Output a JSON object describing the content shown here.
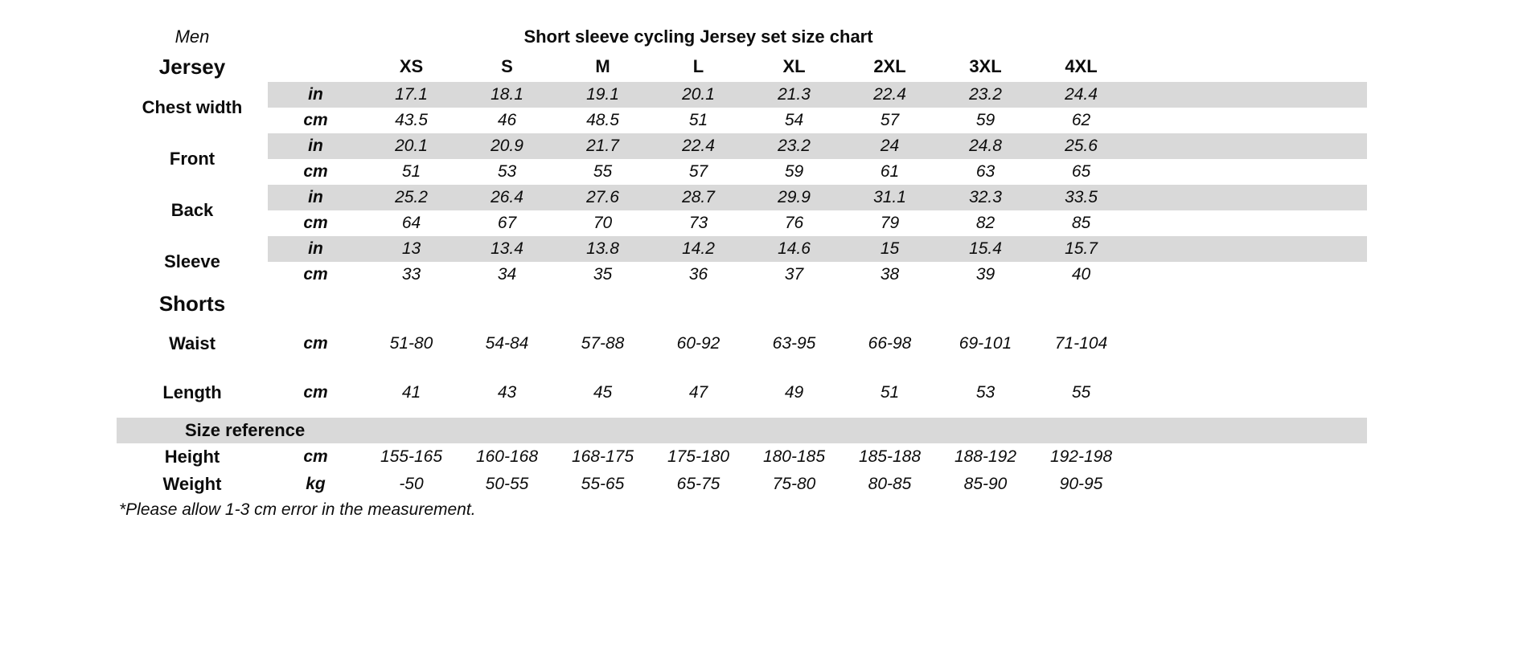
{
  "chart_data": {
    "type": "table",
    "gender": "Men",
    "title": "Short sleeve cycling Jersey set size chart",
    "columns": [
      "XS",
      "S",
      "M",
      "L",
      "XL",
      "2XL",
      "3XL",
      "4XL"
    ],
    "units": {
      "in": "in",
      "cm": "cm",
      "kg": "kg"
    },
    "jersey": {
      "heading": "Jersey",
      "measurements": [
        {
          "label": "Chest width",
          "in": [
            "17.1",
            "18.1",
            "19.1",
            "20.1",
            "21.3",
            "22.4",
            "23.2",
            "24.4"
          ],
          "cm": [
            "43.5",
            "46",
            "48.5",
            "51",
            "54",
            "57",
            "59",
            "62"
          ]
        },
        {
          "label": "Front",
          "in": [
            "20.1",
            "20.9",
            "21.7",
            "22.4",
            "23.2",
            "24",
            "24.8",
            "25.6"
          ],
          "cm": [
            "51",
            "53",
            "55",
            "57",
            "59",
            "61",
            "63",
            "65"
          ]
        },
        {
          "label": "Back",
          "in": [
            "25.2",
            "26.4",
            "27.6",
            "28.7",
            "29.9",
            "31.1",
            "32.3",
            "33.5"
          ],
          "cm": [
            "64",
            "67",
            "70",
            "73",
            "76",
            "79",
            "82",
            "85"
          ]
        },
        {
          "label": "Sleeve",
          "in": [
            "13",
            "13.4",
            "13.8",
            "14.2",
            "14.6",
            "15",
            "15.4",
            "15.7"
          ],
          "cm": [
            "33",
            "34",
            "35",
            "36",
            "37",
            "38",
            "39",
            "40"
          ]
        }
      ]
    },
    "shorts": {
      "heading": "Shorts",
      "measurements": [
        {
          "label": "Waist",
          "unit": "cm",
          "values": [
            "51-80",
            "54-84",
            "57-88",
            "60-92",
            "63-95",
            "66-98",
            "69-101",
            "71-104"
          ]
        },
        {
          "label": "Length",
          "unit": "cm",
          "values": [
            "41",
            "43",
            "45",
            "47",
            "49",
            "51",
            "53",
            "55"
          ]
        }
      ]
    },
    "size_reference": {
      "heading": "Size reference",
      "measurements": [
        {
          "label": "Height",
          "unit": "cm",
          "values": [
            "155-165",
            "160-168",
            "168-175",
            "175-180",
            "180-185",
            "185-188",
            "188-192",
            "192-198"
          ]
        },
        {
          "label": "Weight",
          "unit": "kg",
          "values": [
            "-50",
            "50-55",
            "55-65",
            "65-75",
            "75-80",
            "80-85",
            "85-90",
            "90-95"
          ]
        }
      ]
    },
    "footnote": "*Please allow 1-3 cm error in the measurement.",
    "layout": {
      "stripe_color": "#d9d9d9",
      "background": "#ffffff",
      "text_color": "#0c0c0c"
    }
  }
}
